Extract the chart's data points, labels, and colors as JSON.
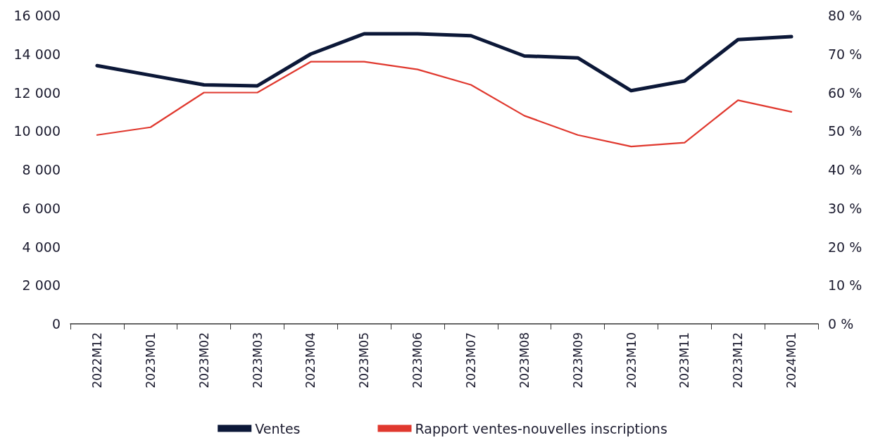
{
  "chart_data": {
    "type": "line",
    "categories": [
      "2022M12",
      "2023M01",
      "2023M02",
      "2023M03",
      "2023M04",
      "2023M05",
      "2023M06",
      "2023M07",
      "2023M08",
      "2023M09",
      "2023M10",
      "2023M11",
      "2023M12",
      "2024M01"
    ],
    "series": [
      {
        "name": "Ventes",
        "color": "#0c1838",
        "values": [
          13400,
          12900,
          12400,
          12350,
          14000,
          15050,
          15050,
          14950,
          13900,
          13800,
          12100,
          12600,
          14750,
          14900
        ]
      },
      {
        "name": "Rapport ventes-nouvelles inscriptions",
        "color": "#e0382e",
        "axis": "y2",
        "values": [
          49,
          51,
          60,
          60,
          68,
          68,
          66,
          62,
          54,
          49,
          46,
          47,
          58,
          55
        ]
      }
    ],
    "ylim": [
      0,
      16000
    ],
    "yticks": [
      0,
      {
        "value": 2000,
        "label": "2 000"
      },
      {
        "value": 4000,
        "label": "4 000"
      },
      {
        "value": 6000,
        "label": "6 000"
      },
      {
        "value": 8000,
        "label": "8 000"
      },
      {
        "value": 10000,
        "label": "10 000"
      },
      {
        "value": 12000,
        "label": "12 000"
      },
      {
        "value": 14000,
        "label": "14 000"
      },
      {
        "value": 16000,
        "label": "16 000"
      }
    ],
    "y2lim": [
      0,
      80
    ],
    "y2ticks": [
      {
        "value": 0,
        "label": "0 %"
      },
      {
        "value": 10,
        "label": "10 %"
      },
      {
        "value": 20,
        "label": "20 %"
      },
      {
        "value": 30,
        "label": "30 %"
      },
      {
        "value": 40,
        "label": "40 %"
      },
      {
        "value": 50,
        "label": "50 %"
      },
      {
        "value": 60,
        "label": "60 %"
      },
      {
        "value": 70,
        "label": "70 %"
      },
      {
        "value": 80,
        "label": "80 %"
      }
    ],
    "grid": false,
    "legend": "bottom",
    "marker": "none"
  }
}
